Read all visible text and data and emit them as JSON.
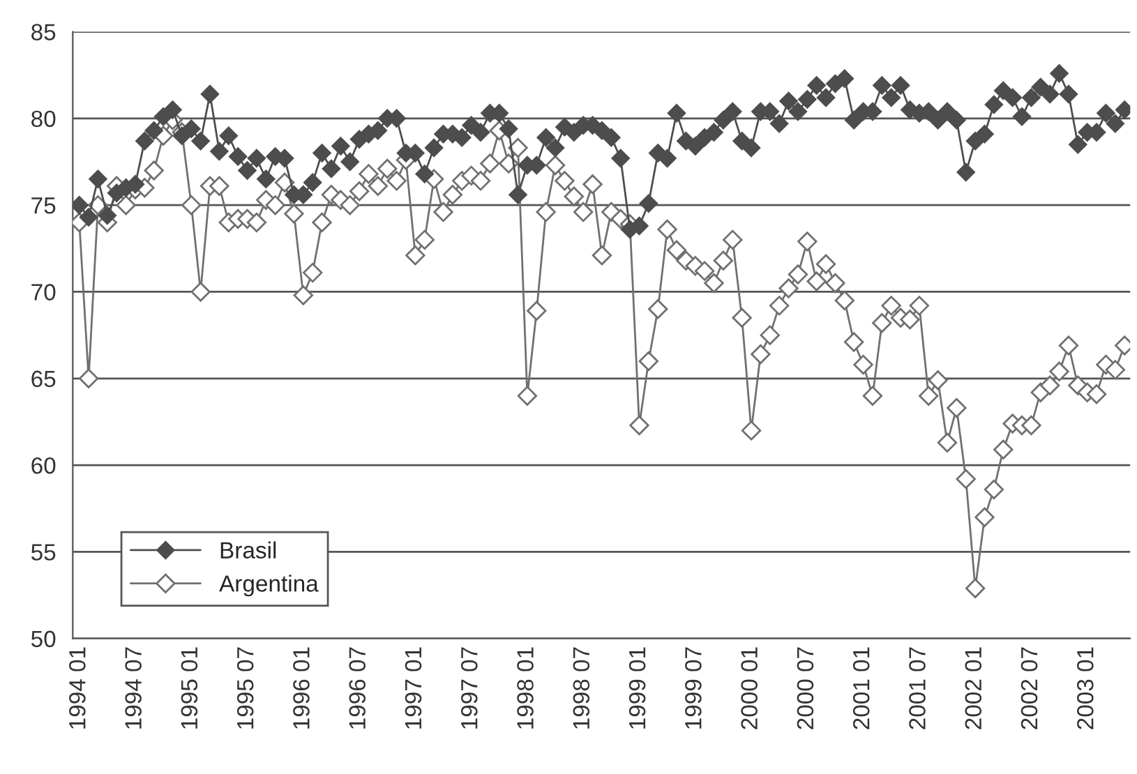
{
  "chart_data": {
    "type": "line",
    "categories": [
      "1994 01",
      null,
      null,
      null,
      null,
      null,
      "1994 07",
      null,
      null,
      null,
      null,
      null,
      "1995 01",
      null,
      null,
      null,
      null,
      null,
      "1995 07",
      null,
      null,
      null,
      null,
      null,
      "1996 01",
      null,
      null,
      null,
      null,
      null,
      "1996 07",
      null,
      null,
      null,
      null,
      null,
      "1997 01",
      null,
      null,
      null,
      null,
      null,
      "1997 07",
      null,
      null,
      null,
      null,
      null,
      "1998 01",
      null,
      null,
      null,
      null,
      null,
      "1998 07",
      null,
      null,
      null,
      null,
      null,
      "1999 01",
      null,
      null,
      null,
      null,
      null,
      "1999 07",
      null,
      null,
      null,
      null,
      null,
      "2000 01",
      null,
      null,
      null,
      null,
      null,
      "2000 07",
      null,
      null,
      null,
      null,
      null,
      "2001 01",
      null,
      null,
      null,
      null,
      null,
      "2001 07",
      null,
      null,
      null,
      null,
      null,
      "2002 01",
      null,
      null,
      null,
      null,
      null,
      "2002 07",
      null,
      null,
      null,
      null,
      null,
      "2003 01",
      null,
      null,
      null,
      null
    ],
    "series": [
      {
        "name": "Brasil",
        "color": "#4d4d4d",
        "values": [
          75.0,
          74.3,
          76.5,
          74.4,
          75.7,
          76.0,
          76.2,
          78.7,
          79.3,
          80.1,
          80.5,
          79.0,
          79.4,
          78.7,
          81.4,
          78.1,
          79.0,
          77.8,
          77.0,
          77.7,
          76.5,
          77.8,
          77.7,
          75.6,
          75.6,
          76.3,
          78.0,
          77.1,
          78.4,
          77.5,
          78.8,
          79.1,
          79.3,
          80.0,
          80.0,
          78.0,
          78.0,
          76.8,
          78.3,
          79.1,
          79.1,
          78.9,
          79.6,
          79.2,
          80.3,
          80.3,
          79.4,
          75.6,
          77.3,
          77.3,
          78.9,
          78.3,
          79.5,
          79.2,
          79.6,
          79.6,
          79.3,
          78.9,
          77.7,
          73.6,
          73.8,
          75.1,
          78.0,
          77.7,
          80.3,
          78.7,
          78.4,
          78.9,
          79.2,
          79.9,
          80.4,
          78.7,
          78.3,
          80.4,
          80.4,
          79.7,
          81.0,
          80.4,
          81.1,
          81.9,
          81.2,
          82.0,
          82.3,
          79.9,
          80.4,
          80.4,
          81.9,
          81.2,
          81.9,
          80.5,
          80.3,
          80.4,
          79.9,
          80.4,
          79.9,
          76.9,
          78.7,
          79.1,
          80.8,
          81.6,
          81.2,
          80.1,
          81.2,
          81.8,
          81.4,
          82.6,
          81.4,
          78.5,
          79.2,
          79.2,
          80.3,
          79.7,
          80.5
        ]
      },
      {
        "name": "Argentina",
        "color": "#707070",
        "values": [
          74.0,
          65.0,
          75.0,
          74.0,
          76.1,
          75.0,
          75.9,
          76.0,
          77.0,
          79.0,
          79.9,
          79.2,
          75.0,
          70.0,
          76.1,
          76.1,
          74.0,
          74.2,
          74.2,
          74.0,
          75.3,
          75.0,
          76.3,
          74.5,
          69.8,
          71.1,
          74.0,
          75.6,
          75.3,
          75.0,
          75.8,
          76.8,
          76.1,
          77.1,
          76.4,
          77.6,
          72.1,
          73.0,
          76.5,
          74.6,
          75.6,
          76.4,
          76.7,
          76.4,
          77.4,
          79.3,
          77.4,
          78.3,
          64.0,
          68.9,
          74.6,
          77.3,
          76.4,
          75.5,
          74.6,
          76.2,
          72.1,
          74.6,
          74.2,
          73.9,
          62.3,
          66.0,
          69.0,
          73.6,
          72.4,
          71.8,
          71.5,
          71.2,
          70.5,
          71.8,
          73.0,
          68.5,
          62.0,
          66.4,
          67.5,
          69.2,
          70.2,
          71.0,
          72.9,
          70.6,
          71.6,
          70.5,
          69.5,
          67.1,
          65.8,
          64.0,
          68.2,
          69.2,
          68.5,
          68.4,
          69.2,
          64.0,
          64.9,
          61.3,
          63.3,
          59.2,
          52.9,
          57.0,
          58.6,
          60.9,
          62.4,
          62.3,
          62.3,
          64.2,
          64.6,
          65.4,
          66.9,
          64.6,
          64.2,
          64.1,
          65.8,
          65.5,
          66.9
        ]
      }
    ],
    "ylim": [
      50,
      85
    ],
    "yticks": [
      50,
      55,
      60,
      65,
      70,
      75,
      80,
      85
    ],
    "grid": "y",
    "legend": "bottom left",
    "marker": "diamond",
    "line_style": "solid"
  }
}
